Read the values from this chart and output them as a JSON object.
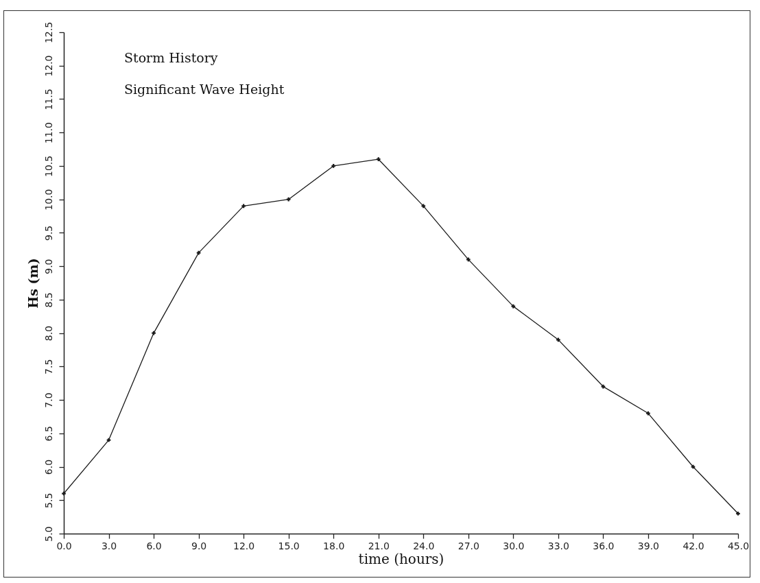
{
  "chart_data": {
    "type": "line",
    "title": "Storm History",
    "subtitle": "Significant Wave Height",
    "xlabel": "time (hours)",
    "ylabel": "Hs (m)",
    "x": [
      0,
      3,
      6,
      9,
      12,
      15,
      18,
      21,
      24,
      27,
      30,
      33,
      36,
      39,
      42,
      45
    ],
    "series": [
      {
        "color": "#1a1a1a",
        "values": [
          5.6,
          6.4,
          8.0,
          9.2,
          9.9,
          10.0,
          10.5,
          10.6,
          9.9,
          9.1,
          8.4,
          7.9,
          7.2,
          6.8,
          6.0,
          5.3
        ]
      }
    ],
    "xlim": [
      0,
      45
    ],
    "ylim": [
      5,
      12.5
    ],
    "xticks": [
      {
        "value": 0,
        "label": "0.0"
      },
      {
        "value": 3,
        "label": "3.0"
      },
      {
        "value": 6,
        "label": "6.0"
      },
      {
        "value": 9,
        "label": "9.0"
      },
      {
        "value": 12,
        "label": "12.0"
      },
      {
        "value": 15,
        "label": "15.0"
      },
      {
        "value": 18,
        "label": "18.0"
      },
      {
        "value": 21,
        "label": "21.0"
      },
      {
        "value": 24,
        "label": "24.0"
      },
      {
        "value": 27,
        "label": "27.0"
      },
      {
        "value": 30,
        "label": "30.0"
      },
      {
        "value": 33,
        "label": "33.0"
      },
      {
        "value": 36,
        "label": "36.0"
      },
      {
        "value": 39,
        "label": "39.0"
      },
      {
        "value": 42,
        "label": "42.0"
      },
      {
        "value": 45,
        "label": "45.0"
      }
    ],
    "yticks": [
      {
        "value": 5,
        "label": "5.0"
      },
      5.5,
      {
        "value": 6,
        "label": "6.0"
      },
      6.5,
      {
        "value": 7,
        "label": "7.0"
      },
      7.5,
      {
        "value": 8,
        "label": "8.0"
      },
      8.5,
      {
        "value": 9,
        "label": "9.0"
      },
      9.5,
      {
        "value": 10,
        "label": "10.0"
      },
      10.5,
      {
        "value": 11,
        "label": "11.0"
      },
      11.5,
      {
        "value": 12,
        "label": "12.0"
      },
      12.5
    ],
    "grid": false,
    "marker": "cross",
    "line_style": "solid"
  }
}
